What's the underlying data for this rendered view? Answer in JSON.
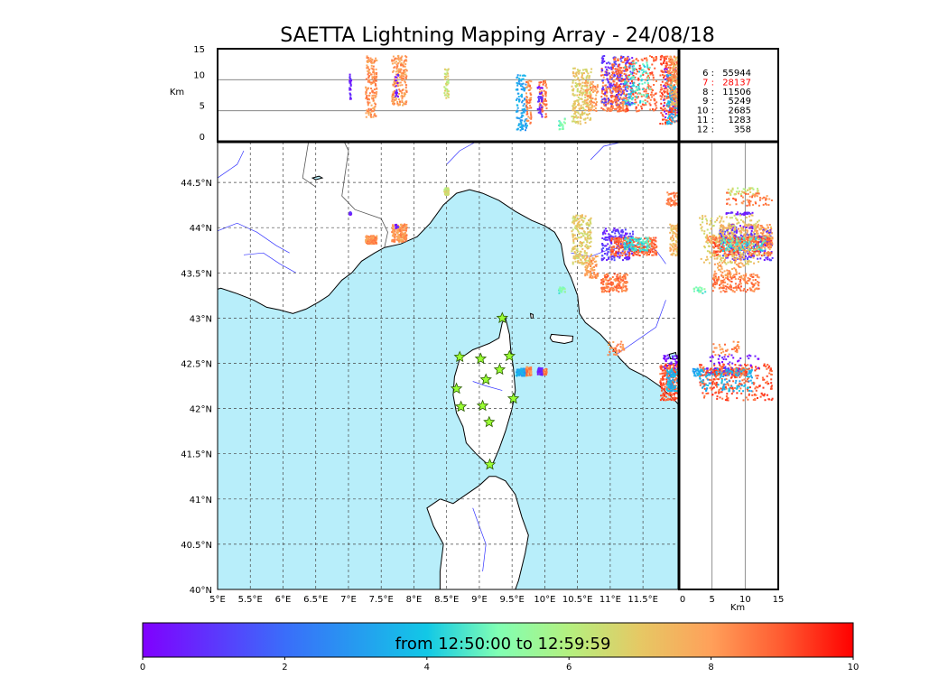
{
  "chart_data": {
    "type": "scatter",
    "title": "SAETTA Lightning Mapping Array - 24/08/18",
    "map": {
      "lon_range": [
        5,
        12.05
      ],
      "lat_range": [
        40,
        44.95
      ],
      "lon_ticks": [
        5,
        5.5,
        6,
        6.5,
        7,
        7.5,
        8,
        8.5,
        9,
        9.5,
        10,
        10.5,
        11,
        11.5
      ],
      "lon_tick_labels": [
        "5°E",
        "5.5°E",
        "6°E",
        "6.5°E",
        "7°E",
        "7.5°E",
        "8°E",
        "8.5°E",
        "9°E",
        "9.5°E",
        "10°E",
        "10.5°E",
        "11°E",
        "11.5°E"
      ],
      "lat_ticks": [
        40,
        40.5,
        41,
        41.5,
        42,
        42.5,
        43,
        43.5,
        44,
        44.5
      ],
      "lat_tick_labels": [
        "40°N",
        "40.5°N",
        "41°N",
        "41.5°N",
        "42°N",
        "42.5°N",
        "43°N",
        "43.5°N",
        "44°N",
        "44.5°N"
      ],
      "grid": true,
      "sea_color": "#b8eefa",
      "land_color": "#ffffff",
      "coast_color": "#000000",
      "river_color": "#3333ff",
      "stations": [
        [
          9.35,
          43.0
        ],
        [
          8.7,
          42.57
        ],
        [
          9.02,
          42.55
        ],
        [
          9.46,
          42.58
        ],
        [
          9.1,
          42.32
        ],
        [
          9.31,
          42.43
        ],
        [
          8.65,
          42.22
        ],
        [
          8.72,
          42.02
        ],
        [
          9.05,
          42.03
        ],
        [
          9.52,
          42.11
        ],
        [
          9.15,
          41.85
        ],
        [
          9.16,
          41.38
        ]
      ],
      "station_color": "#9aff33"
    },
    "altitude_axis": {
      "label": "Km",
      "range": [
        0,
        15
      ],
      "ticks": [
        0,
        5,
        10,
        15
      ],
      "tick_labels": [
        "0",
        "5",
        "10",
        "15"
      ],
      "reference_lines": [
        5,
        10
      ]
    },
    "clusters": [
      {
        "lon": [
          7.0,
          7.03
        ],
        "lat": [
          44.15,
          44.18
        ],
        "alt": [
          7,
          11
        ],
        "time": 0.5,
        "n": 30
      },
      {
        "lon": [
          7.25,
          7.42
        ],
        "lat": [
          43.83,
          43.92
        ],
        "alt": [
          4,
          14
        ],
        "time": 8.2,
        "n": 160
      },
      {
        "lon": [
          7.65,
          7.88
        ],
        "lat": [
          43.85,
          44.05
        ],
        "alt": [
          6,
          14
        ],
        "time": 8.1,
        "n": 180
      },
      {
        "lon": [
          7.7,
          7.75
        ],
        "lat": [
          44.0,
          44.05
        ],
        "alt": [
          7,
          11
        ],
        "time": 0.6,
        "n": 20
      },
      {
        "lon": [
          8.45,
          8.52
        ],
        "lat": [
          44.37,
          44.45
        ],
        "alt": [
          7,
          12
        ],
        "time": 6.5,
        "n": 40
      },
      {
        "lon": [
          9.55,
          9.72
        ],
        "lat": [
          42.37,
          42.45
        ],
        "alt": [
          2,
          11
        ],
        "time": 3.2,
        "n": 120
      },
      {
        "lon": [
          9.7,
          9.78
        ],
        "lat": [
          42.37,
          42.47
        ],
        "alt": [
          3,
          10
        ],
        "time": 8.3,
        "n": 60
      },
      {
        "lon": [
          9.9,
          10.02
        ],
        "lat": [
          42.38,
          42.45
        ],
        "alt": [
          4,
          10
        ],
        "time": 8.6,
        "n": 60
      },
      {
        "lon": [
          9.88,
          9.95
        ],
        "lat": [
          42.38,
          42.46
        ],
        "alt": [
          4,
          9
        ],
        "time": 0.7,
        "n": 40
      },
      {
        "lon": [
          10.2,
          10.3
        ],
        "lat": [
          43.28,
          43.35
        ],
        "alt": [
          2,
          4
        ],
        "time": 5.0,
        "n": 20
      },
      {
        "lon": [
          10.4,
          10.7
        ],
        "lat": [
          43.6,
          44.15
        ],
        "alt": [
          3,
          12
        ],
        "time": 6.9,
        "n": 220
      },
      {
        "lon": [
          10.85,
          11.25
        ],
        "lat": [
          43.3,
          43.5
        ],
        "alt": [
          5,
          12
        ],
        "time": 8.6,
        "n": 160
      },
      {
        "lon": [
          10.85,
          11.35
        ],
        "lat": [
          43.65,
          44.0
        ],
        "alt": [
          6,
          14
        ],
        "time": 0.9,
        "n": 200
      },
      {
        "lon": [
          11.0,
          11.7
        ],
        "lat": [
          43.7,
          43.9
        ],
        "alt": [
          5,
          14
        ],
        "time": 8.9,
        "n": 260
      },
      {
        "lon": [
          11.2,
          11.6
        ],
        "lat": [
          43.75,
          43.9
        ],
        "alt": [
          6,
          13
        ],
        "time": 4.5,
        "n": 100
      },
      {
        "lon": [
          10.6,
          10.8
        ],
        "lat": [
          43.45,
          43.7
        ],
        "alt": [
          5,
          10
        ],
        "time": 8.0,
        "n": 80
      },
      {
        "lon": [
          10.95,
          11.2
        ],
        "lat": [
          42.6,
          42.75
        ],
        "alt": [
          5,
          9
        ],
        "time": 8.4,
        "n": 40
      },
      {
        "lon": [
          11.75,
          12.05
        ],
        "lat": [
          42.1,
          42.5
        ],
        "alt": [
          3,
          14
        ],
        "time": 9.0,
        "n": 260
      },
      {
        "lon": [
          11.8,
          12.05
        ],
        "lat": [
          42.45,
          42.6
        ],
        "alt": [
          4,
          12
        ],
        "time": 0.5,
        "n": 40
      },
      {
        "lon": [
          11.85,
          12.05
        ],
        "lat": [
          42.2,
          42.45
        ],
        "alt": [
          3,
          11
        ],
        "time": 3.5,
        "n": 100
      },
      {
        "lon": [
          11.9,
          12.05
        ],
        "lat": [
          43.7,
          44.05
        ],
        "alt": [
          6,
          14
        ],
        "time": 7.4,
        "n": 100
      },
      {
        "lon": [
          11.85,
          12.05
        ],
        "lat": [
          44.25,
          44.4
        ],
        "alt": [
          7,
          14
        ],
        "time": 8.5,
        "n": 60
      }
    ],
    "counts": [
      {
        "label": "6 :",
        "value": "55944",
        "color": "#000000"
      },
      {
        "label": "7 :",
        "value": "28137",
        "color": "#ff0000"
      },
      {
        "label": "8 :",
        "value": "11506",
        "color": "#000000"
      },
      {
        "label": "9 :",
        "value": "5249",
        "color": "#000000"
      },
      {
        "label": "10 :",
        "value": "2685",
        "color": "#000000"
      },
      {
        "label": "11 :",
        "value": "1283",
        "color": "#000000"
      },
      {
        "label": "12 :",
        "value": "358",
        "color": "#000000"
      }
    ],
    "colorbar": {
      "label": "from 12:50:00 to 12:59:59",
      "range": [
        0,
        10
      ],
      "ticks": [
        0,
        2,
        4,
        6,
        8,
        10
      ],
      "tick_labels": [
        "0",
        "2",
        "4",
        "6",
        "8",
        "10"
      ],
      "colormap": "rainbow"
    }
  }
}
